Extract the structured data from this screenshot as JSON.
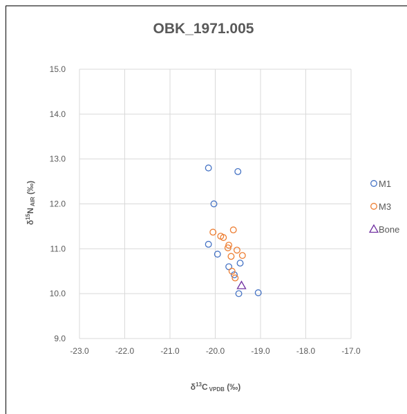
{
  "chart_data": {
    "type": "scatter",
    "title": "OBK_1971.005",
    "xlabel": {
      "base": "δ",
      "sup": "13",
      "main": "C",
      "sub": "VPDB",
      "unit": " (‰)"
    },
    "ylabel": {
      "base": "δ",
      "sup": "15",
      "main": "N",
      "sub": "AIR",
      "unit": " (‰)"
    },
    "xlim": [
      -23.0,
      -17.0
    ],
    "ylim": [
      9.0,
      15.0
    ],
    "x_ticks": [
      "-23.0",
      "-22.0",
      "-21.0",
      "-20.0",
      "-19.0",
      "-18.0",
      "-17.0"
    ],
    "y_ticks": [
      "9.0",
      "10.0",
      "11.0",
      "12.0",
      "13.0",
      "14.0",
      "15.0"
    ],
    "grid": true,
    "legend_position": "right",
    "series": [
      {
        "name": "M1",
        "marker": "circle",
        "color": "#4472C4",
        "points": [
          [
            -20.15,
            12.8
          ],
          [
            -19.5,
            12.72
          ],
          [
            -20.03,
            12.0
          ],
          [
            -20.15,
            11.1
          ],
          [
            -19.95,
            10.88
          ],
          [
            -19.45,
            10.68
          ],
          [
            -19.7,
            10.6
          ],
          [
            -19.58,
            10.42
          ],
          [
            -19.48,
            10.0
          ],
          [
            -19.05,
            10.02
          ]
        ]
      },
      {
        "name": "M3",
        "marker": "circle",
        "color": "#ED7D31",
        "points": [
          [
            -20.05,
            11.37
          ],
          [
            -19.6,
            11.42
          ],
          [
            -19.88,
            11.28
          ],
          [
            -19.82,
            11.25
          ],
          [
            -19.7,
            11.08
          ],
          [
            -19.72,
            11.02
          ],
          [
            -19.52,
            10.97
          ],
          [
            -19.65,
            10.83
          ],
          [
            -19.4,
            10.85
          ],
          [
            -19.63,
            10.5
          ],
          [
            -19.56,
            10.35
          ]
        ]
      },
      {
        "name": "Bone",
        "marker": "triangle",
        "color": "#7030A0",
        "points": [
          [
            -19.42,
            10.18
          ]
        ]
      }
    ]
  }
}
